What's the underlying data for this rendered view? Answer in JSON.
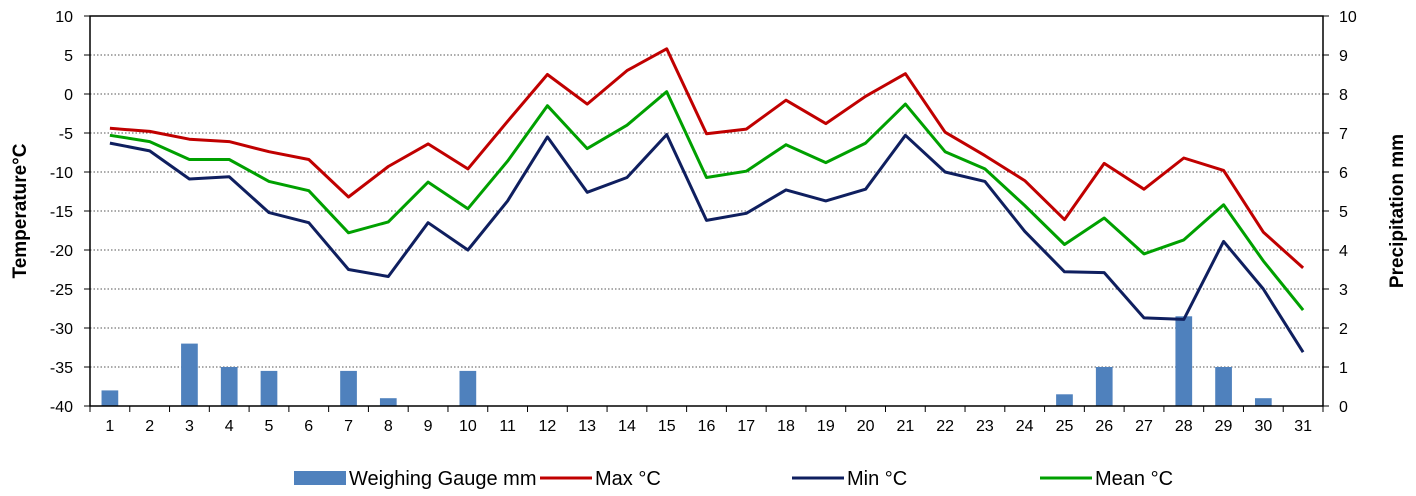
{
  "chart_data": {
    "type": "line",
    "categories": [
      "1",
      "2",
      "3",
      "4",
      "5",
      "6",
      "7",
      "8",
      "9",
      "10",
      "11",
      "12",
      "13",
      "14",
      "15",
      "16",
      "17",
      "18",
      "19",
      "20",
      "21",
      "22",
      "23",
      "24",
      "25",
      "26",
      "27",
      "28",
      "29",
      "30",
      "31"
    ],
    "y_left": {
      "label": "Temperature°C",
      "range": [
        -40,
        10
      ],
      "ticks": [
        "10",
        "5",
        "0",
        "-5",
        "-10",
        "-15",
        "-20",
        "-25",
        "-30",
        "-35",
        "-40"
      ]
    },
    "y_right": {
      "label": "Precipitation mm",
      "range": [
        0,
        10
      ],
      "ticks": [
        "10",
        "9",
        "8",
        "7",
        "6",
        "5",
        "4",
        "3",
        "2",
        "1",
        "0"
      ]
    },
    "grid": "horizontal dotted",
    "legend_position": "bottom",
    "series": [
      {
        "name": "Weighing Gauge mm",
        "type": "bar",
        "axis": "right",
        "color": "#4f81bd",
        "values": [
          0.4,
          0,
          1.6,
          1,
          0.9,
          0,
          0.9,
          0.2,
          0,
          0.9,
          0,
          0,
          0,
          0,
          0,
          0,
          0,
          0,
          0,
          0,
          0,
          0,
          0,
          0,
          0.3,
          1,
          0,
          2.3,
          1,
          0.2,
          0
        ]
      },
      {
        "name": "Max °C",
        "type": "line",
        "axis": "left",
        "color": "#c00000",
        "values": [
          -4.4,
          -4.8,
          -5.8,
          -6.1,
          -7.4,
          -8.4,
          -13.2,
          -9.3,
          -6.4,
          -9.6,
          -3.5,
          2.5,
          -1.3,
          3,
          5.8,
          -5.1,
          -4.5,
          -0.8,
          -3.8,
          -0.3,
          2.6,
          -4.9,
          -7.9,
          -11.1,
          -16.1,
          -8.9,
          -12.2,
          -8.2,
          -9.8,
          -17.7,
          -22.3
        ]
      },
      {
        "name": "Min °C",
        "type": "line",
        "axis": "left",
        "color": "#0f1f5f",
        "values": [
          -6.3,
          -7.3,
          -10.9,
          -10.6,
          -15.2,
          -16.5,
          -22.5,
          -23.4,
          -16.5,
          -20,
          -13.7,
          -5.5,
          -12.6,
          -10.7,
          -5.2,
          -16.2,
          -15.3,
          -12.3,
          -13.7,
          -12.2,
          -5.3,
          -10,
          -11.2,
          -17.6,
          -22.8,
          -22.9,
          -28.7,
          -28.9,
          -18.9,
          -25,
          -33.1
        ]
      },
      {
        "name": "Mean °C",
        "type": "line",
        "axis": "left",
        "color": "#00a000",
        "values": [
          -5.3,
          -6.1,
          -8.4,
          -8.4,
          -11.2,
          -12.4,
          -17.8,
          -16.4,
          -11.3,
          -14.7,
          -8.6,
          -1.5,
          -7,
          -4,
          0.3,
          -10.7,
          -9.9,
          -6.5,
          -8.8,
          -6.3,
          -1.3,
          -7.4,
          -9.6,
          -14.3,
          -19.3,
          -15.9,
          -20.5,
          -18.7,
          -14.2,
          -21.4,
          -27.7
        ]
      }
    ]
  }
}
